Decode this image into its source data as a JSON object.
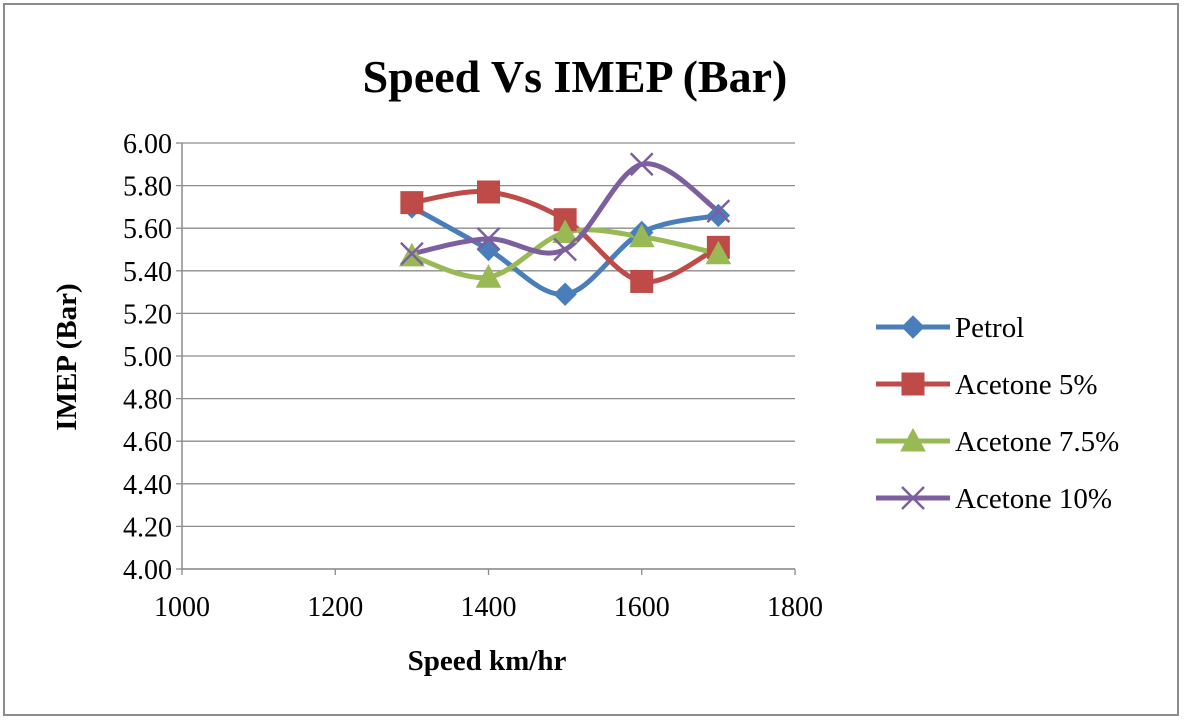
{
  "chart_data": {
    "type": "scatter",
    "title": "Speed Vs IMEP (Bar)",
    "xlabel": "Speed km/hr",
    "ylabel": "IMEP (Bar)",
    "xlim": [
      1000,
      1800
    ],
    "ylim": [
      4.0,
      6.0
    ],
    "x_ticks": [
      "1000",
      "1200",
      "1400",
      "1600",
      "1800"
    ],
    "y_ticks": [
      "4.00",
      "4.20",
      "4.40",
      "4.60",
      "4.80",
      "5.00",
      "5.20",
      "5.40",
      "5.60",
      "5.80",
      "6.00"
    ],
    "grid": "horizontal",
    "smooth_lines": true,
    "legend_position": "right",
    "x": [
      1300,
      1400,
      1500,
      1600,
      1700
    ],
    "series": [
      {
        "name": "Petrol",
        "color": "#4a7ebb",
        "marker": "diamond",
        "values": [
          5.7,
          5.5,
          5.29,
          5.58,
          5.66
        ]
      },
      {
        "name": "Acetone 5%",
        "color": "#be4b48",
        "marker": "square",
        "values": [
          5.72,
          5.77,
          5.64,
          5.35,
          5.51
        ]
      },
      {
        "name": "Acetone 7.5%",
        "color": "#98b954",
        "marker": "triangle",
        "values": [
          5.47,
          5.37,
          5.58,
          5.56,
          5.48
        ]
      },
      {
        "name": "Acetone 10%",
        "color": "#7d5fa0",
        "marker": "x",
        "values": [
          5.48,
          5.55,
          5.5,
          5.9,
          5.68
        ]
      }
    ]
  }
}
